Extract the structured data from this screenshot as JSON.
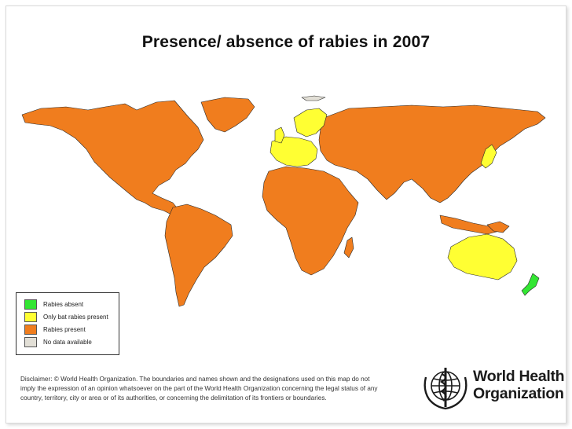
{
  "title": "Presence/ absence of rabies in 2007",
  "legend": {
    "items": [
      {
        "label": "Rabies absent",
        "color": "#33e633"
      },
      {
        "label": "Only bat rabies present",
        "color": "#ffff33"
      },
      {
        "label": "Rabies present",
        "color": "#f07d1e"
      },
      {
        "label": "No data available",
        "color": "#e2dfd6"
      }
    ]
  },
  "disclaimer": {
    "lines": [
      "Disclaimer: © World Health Organization. The boundaries and names shown and the designations used on this map do not",
      "imply the expression of an opinion whatsoever on the part of the World Health Organization concerning the legal status of any",
      "country, territory, city or area or of its authorities, or concerning the delimitation of its frontiers or boundaries."
    ]
  },
  "organization": {
    "name_line1": "World Health",
    "name_line2": "Organization",
    "emblem": "who-emblem-icon"
  },
  "map": {
    "region_status": {
      "north-america": "Rabies present",
      "greenland": "Rabies present",
      "south-america": "Rabies present",
      "africa": "Rabies present",
      "asia": "Rabies present",
      "western-europe": "Only bat rabies present",
      "scandinavia": "Only bat rabies present",
      "britain": "Only bat rabies present",
      "japan": "Only bat rabies present",
      "australia": "Only bat rabies present",
      "new-zealand": "Rabies absent",
      "antarctica-edge": "No data available"
    }
  }
}
